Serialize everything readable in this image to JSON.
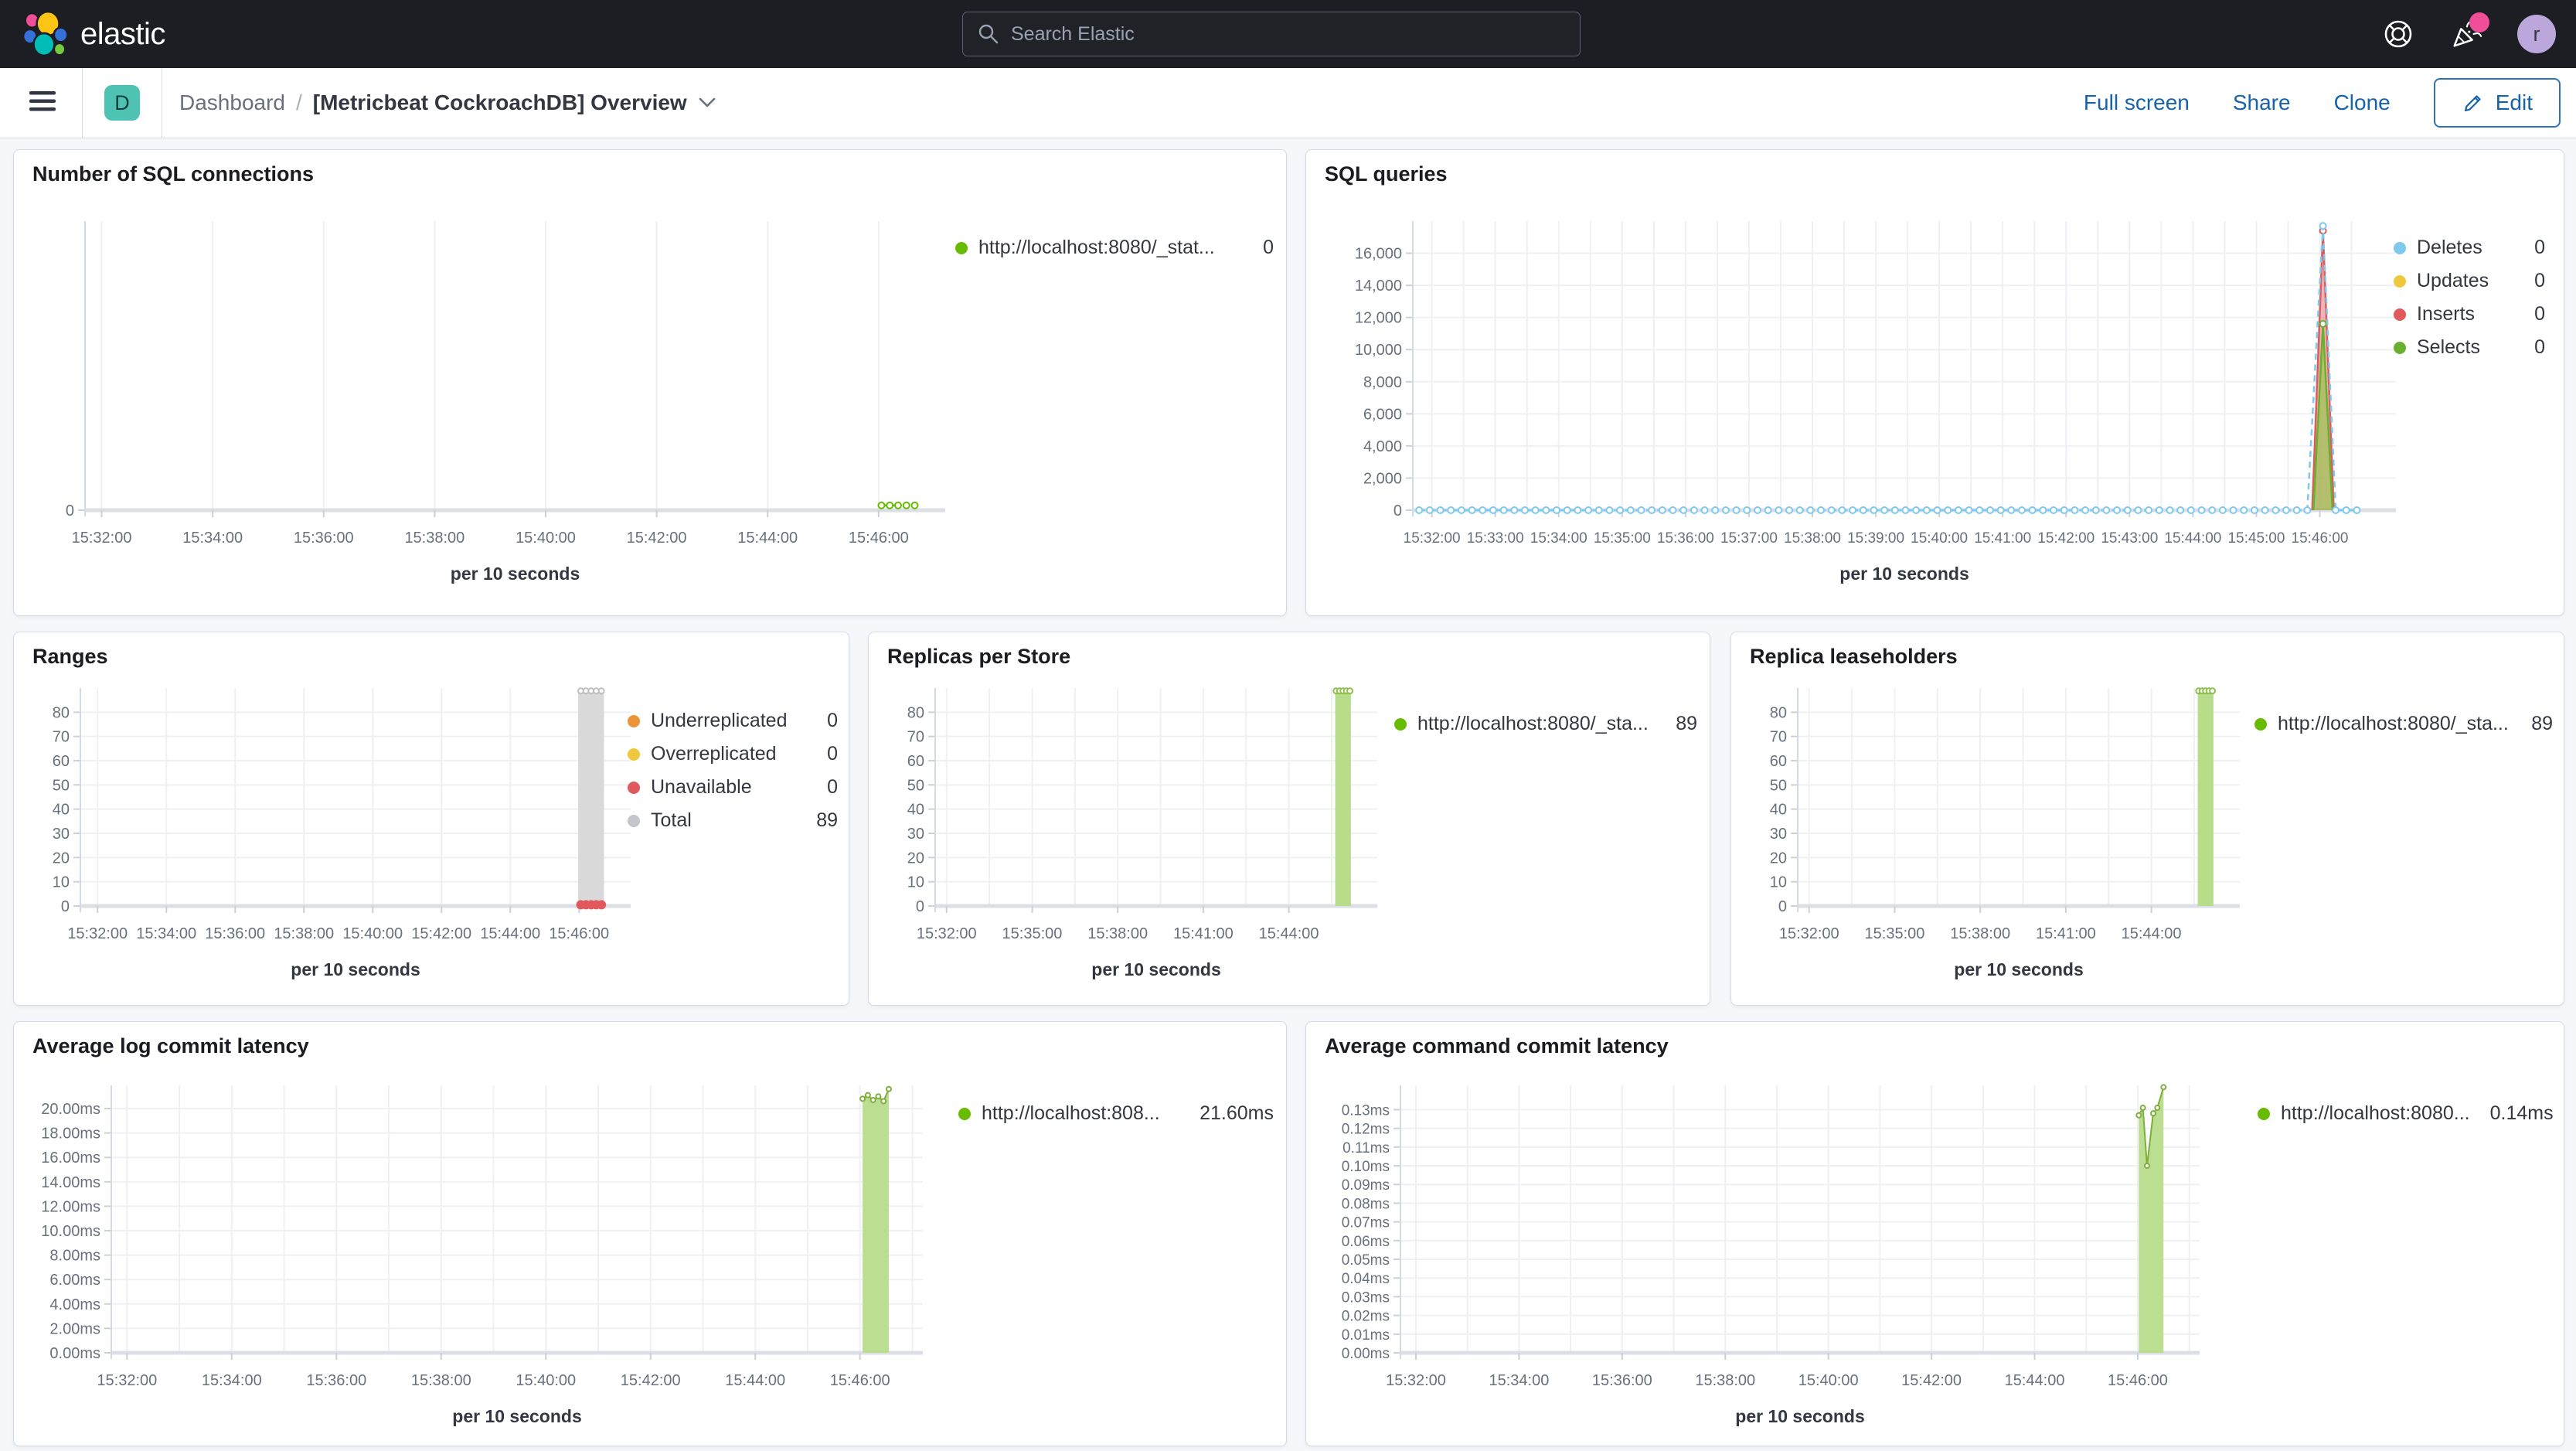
{
  "topbar": {
    "brand": "elastic",
    "search_placeholder": "Search Elastic",
    "avatar_initial": "r"
  },
  "navbar": {
    "badge": "D",
    "breadcrumb_root": "Dashboard",
    "breadcrumb_sep": "/",
    "title": "[Metricbeat CockroachDB] Overview",
    "action_fullscreen": "Full screen",
    "action_share": "Share",
    "action_clone": "Clone",
    "edit_label": "Edit"
  },
  "colors": {
    "accent_blue": "#1663ac",
    "badge_teal": "#4ec3b3",
    "notification_pink": "#f04e98",
    "avatar_purple": "#bca7dd",
    "green_series": "#68bc00",
    "bar_green": "#b7dc8a",
    "bar_gray": "#d9d9d9",
    "red_series": "#e0595c",
    "orange_series": "#eb9438",
    "yellow_series": "#f0c83d",
    "blue_series": "#7ec9ed"
  },
  "panels": [
    {
      "title": "Number of SQL connections",
      "legend": {
        "items": [
          {
            "label": "http://localhost:8080/_stat...",
            "value": "0",
            "color": "#68bc00"
          }
        ]
      }
    },
    {
      "title": "SQL queries",
      "legend": {
        "items": [
          {
            "label": "Deletes",
            "value": "0",
            "color": "#7ec9ed"
          },
          {
            "label": "Updates",
            "value": "0",
            "color": "#f0c83d"
          },
          {
            "label": "Inserts",
            "value": "0",
            "color": "#e0595c"
          },
          {
            "label": "Selects",
            "value": "0",
            "color": "#6ab02f"
          }
        ]
      }
    },
    {
      "title": "Ranges",
      "legend": {
        "items": [
          {
            "label": "Underreplicated",
            "value": "0",
            "color": "#eb9438"
          },
          {
            "label": "Overreplicated",
            "value": "0",
            "color": "#f0c83d"
          },
          {
            "label": "Unavailable",
            "value": "0",
            "color": "#e0595c"
          },
          {
            "label": "Total",
            "value": "89",
            "color": "#c4c6cc"
          }
        ]
      }
    },
    {
      "title": "Replicas per Store",
      "legend": {
        "items": [
          {
            "label": "http://localhost:8080/_sta...",
            "value": "89",
            "color": "#68bc00"
          }
        ]
      }
    },
    {
      "title": "Replica leaseholders",
      "legend": {
        "items": [
          {
            "label": "http://localhost:8080/_sta...",
            "value": "89",
            "color": "#68bc00"
          }
        ]
      }
    },
    {
      "title": "Average log commit latency",
      "legend": {
        "items": [
          {
            "label": "http://localhost:808...",
            "value": "21.60ms",
            "color": "#68bc00"
          }
        ]
      }
    },
    {
      "title": "Average command commit latency",
      "legend": {
        "items": [
          {
            "label": "http://localhost:8080...",
            "value": "0.14ms",
            "color": "#68bc00"
          }
        ]
      }
    }
  ],
  "chart_data": [
    {
      "type": "line",
      "title": "Number of SQL connections",
      "xlabel": "per 10 seconds",
      "x_unit": "minutes since 15:32:00",
      "x_range": [
        -0.3,
        15.2
      ],
      "x_ticks": [
        [
          0,
          "15:32:00"
        ],
        [
          2,
          "15:34:00"
        ],
        [
          4,
          "15:36:00"
        ],
        [
          6,
          "15:38:00"
        ],
        [
          8,
          "15:40:00"
        ],
        [
          10,
          "15:42:00"
        ],
        [
          12,
          "15:44:00"
        ],
        [
          14,
          "15:46:00"
        ]
      ],
      "x_minor_grid": false,
      "y_range": [
        0,
        9
      ],
      "y_ticks": [
        [
          0,
          "0"
        ]
      ],
      "series": [
        {
          "name": "connections",
          "color": "#68bc00",
          "type": "line",
          "dashed": true,
          "lw": 2.5,
          "marker": "all",
          "mr": 4,
          "points": [
            [
              14.05,
              0.15
            ],
            [
              14.2,
              0.15
            ],
            [
              14.35,
              0.15
            ],
            [
              14.5,
              0.15
            ],
            [
              14.65,
              0.15
            ]
          ]
        }
      ]
    },
    {
      "type": "line",
      "title": "SQL queries",
      "xlabel": "per 10 seconds",
      "x_unit": "minutes since 15:32:00",
      "x_range": [
        -0.3,
        15.2
      ],
      "x_ticks": [
        [
          0,
          "15:32:00"
        ],
        [
          1,
          "15:33:00"
        ],
        [
          2,
          "15:34:00"
        ],
        [
          3,
          "15:35:00"
        ],
        [
          4,
          "15:36:00"
        ],
        [
          5,
          "15:37:00"
        ],
        [
          6,
          "15:38:00"
        ],
        [
          7,
          "15:39:00"
        ],
        [
          8,
          "15:40:00"
        ],
        [
          9,
          "15:41:00"
        ],
        [
          10,
          "15:42:00"
        ],
        [
          11,
          "15:43:00"
        ],
        [
          12,
          "15:44:00"
        ],
        [
          13,
          "15:45:00"
        ],
        [
          14,
          "15:46:00"
        ]
      ],
      "x_minor_grid": true,
      "x_font": 19,
      "y_range": [
        0,
        18000
      ],
      "y_ticks": [
        [
          0,
          "0"
        ],
        [
          2000,
          "2,000"
        ],
        [
          4000,
          "4,000"
        ],
        [
          6000,
          "6,000"
        ],
        [
          8000,
          "8,000"
        ],
        [
          10000,
          "10,000"
        ],
        [
          12000,
          "12,000"
        ],
        [
          14000,
          "14,000"
        ],
        [
          16000,
          "16,000"
        ]
      ],
      "series": [
        {
          "name": "Inserts",
          "color": "#e0595c",
          "type": "area",
          "fill": "#e0595c",
          "fill_opacity": 0.45,
          "lw": 2.5,
          "points": [
            [
              13.88,
              0
            ],
            [
              14.05,
              17400
            ],
            [
              14.22,
              0
            ]
          ],
          "marker_points": [
            [
              14.05,
              17400
            ]
          ],
          "mr": 4
        },
        {
          "name": "Selects",
          "color": "#6ab02f",
          "type": "area",
          "fill": "#8cc63f",
          "fill_opacity": 0.6,
          "lw": 2.5,
          "points": [
            [
              13.9,
              0
            ],
            [
              14.05,
              11600
            ],
            [
              14.2,
              0
            ]
          ],
          "marker_points": [
            [
              14.05,
              11600
            ]
          ],
          "mr": 4
        },
        {
          "name": "Deletes",
          "color": "#7ec9ed",
          "type": "line",
          "dashed": true,
          "lw": 2.5,
          "marker": "all",
          "mr": 4,
          "points": [
            {
              "flat": [
                -0.2,
                13.85,
                0.1667,
                0
              ]
            },
            [
              14.05,
              17700
            ],
            {
              "flat": [
                14.25,
                14.7,
                0.1667,
                0
              ]
            }
          ]
        }
      ]
    },
    {
      "type": "bar",
      "title": "Ranges",
      "xlabel": "per 10 seconds",
      "x_unit": "minutes since 15:32:00",
      "x_range": [
        -0.5,
        15.5
      ],
      "x_ticks": [
        [
          0,
          "15:32:00"
        ],
        [
          2,
          "15:34:00"
        ],
        [
          4,
          "15:36:00"
        ],
        [
          6,
          "15:38:00"
        ],
        [
          8,
          "15:40:00"
        ],
        [
          10,
          "15:42:00"
        ],
        [
          12,
          "15:44:00"
        ],
        [
          14,
          "15:46:00"
        ]
      ],
      "x_minor_grid": false,
      "y_range": [
        0,
        90
      ],
      "y_ticks": [
        [
          0,
          "0"
        ],
        [
          10,
          "10"
        ],
        [
          20,
          "20"
        ],
        [
          30,
          "30"
        ],
        [
          40,
          "40"
        ],
        [
          50,
          "50"
        ],
        [
          60,
          "60"
        ],
        [
          70,
          "70"
        ],
        [
          80,
          "80"
        ]
      ],
      "series": [
        {
          "name": "Total",
          "type": "bar",
          "color": "#d9d9d9",
          "bar_x": 14.35,
          "bar_w": 0.75,
          "bar_y": 88
        },
        {
          "name": "Total-markers",
          "type": "line",
          "color": "#bfbfbf",
          "no_line": true,
          "marker": "all",
          "mr": 3.5,
          "points": [
            [
              14.05,
              88.8
            ],
            [
              14.2,
              88.8
            ],
            [
              14.35,
              88.8
            ],
            [
              14.5,
              88.8
            ],
            [
              14.65,
              88.8
            ]
          ]
        },
        {
          "name": "Unavailable",
          "type": "line",
          "color": "#e0595c",
          "no_line": true,
          "marker": "all",
          "marker_solid": true,
          "mr": 5,
          "points": [
            [
              14.05,
              0.5
            ],
            [
              14.2,
              0.5
            ],
            [
              14.35,
              0.5
            ],
            [
              14.5,
              0.5
            ],
            [
              14.65,
              0.5
            ]
          ]
        }
      ]
    },
    {
      "type": "bar",
      "title": "Replicas per Store",
      "xlabel": "per 10 seconds",
      "x_unit": "minutes since 15:32:00",
      "x_range": [
        -0.4,
        15.1
      ],
      "x_ticks": [
        [
          0,
          "15:32:00"
        ],
        [
          3,
          "15:35:00"
        ],
        [
          6,
          "15:38:00"
        ],
        [
          9,
          "15:41:00"
        ],
        [
          12,
          "15:44:00"
        ]
      ],
      "x_minor_grid": true,
      "y_range": [
        0,
        90
      ],
      "y_ticks": [
        [
          0,
          "0"
        ],
        [
          10,
          "10"
        ],
        [
          20,
          "20"
        ],
        [
          30,
          "30"
        ],
        [
          40,
          "40"
        ],
        [
          50,
          "50"
        ],
        [
          60,
          "60"
        ],
        [
          70,
          "70"
        ],
        [
          80,
          "80"
        ]
      ],
      "series": [
        {
          "name": "replicas",
          "type": "bar",
          "color": "#b7dc8a",
          "bar_x": 13.9,
          "bar_w": 0.55,
          "bar_y": 88
        },
        {
          "name": "replicas-markers",
          "type": "line",
          "color": "#8fbf4d",
          "no_line": true,
          "marker": "all",
          "mr": 3.5,
          "points": [
            [
              13.66,
              88.8
            ],
            [
              13.78,
              88.8
            ],
            [
              13.9,
              88.8
            ],
            [
              14.02,
              88.8
            ],
            [
              14.14,
              88.8
            ]
          ]
        }
      ]
    },
    {
      "type": "bar",
      "title": "Replica leaseholders",
      "xlabel": "per 10 seconds",
      "x_unit": "minutes since 15:32:00",
      "x_range": [
        -0.4,
        15.1
      ],
      "x_ticks": [
        [
          0,
          "15:32:00"
        ],
        [
          3,
          "15:35:00"
        ],
        [
          6,
          "15:38:00"
        ],
        [
          9,
          "15:41:00"
        ],
        [
          12,
          "15:44:00"
        ]
      ],
      "x_minor_grid": true,
      "y_range": [
        0,
        90
      ],
      "y_ticks": [
        [
          0,
          "0"
        ],
        [
          10,
          "10"
        ],
        [
          20,
          "20"
        ],
        [
          30,
          "30"
        ],
        [
          40,
          "40"
        ],
        [
          50,
          "50"
        ],
        [
          60,
          "60"
        ],
        [
          70,
          "70"
        ],
        [
          80,
          "80"
        ]
      ],
      "series": [
        {
          "name": "leaseholders",
          "type": "bar",
          "color": "#b7dc8a",
          "bar_x": 13.9,
          "bar_w": 0.55,
          "bar_y": 88
        },
        {
          "name": "leaseholders-markers",
          "type": "line",
          "color": "#8fbf4d",
          "no_line": true,
          "marker": "all",
          "mr": 3.5,
          "points": [
            [
              13.66,
              88.8
            ],
            [
              13.78,
              88.8
            ],
            [
              13.9,
              88.8
            ],
            [
              14.02,
              88.8
            ],
            [
              14.14,
              88.8
            ]
          ]
        }
      ]
    },
    {
      "type": "area",
      "title": "Average log commit latency",
      "xlabel": "per 10 seconds",
      "x_unit": "minutes since 15:32:00",
      "x_range": [
        -0.3,
        15.2
      ],
      "x_ticks": [
        [
          0,
          "15:32:00"
        ],
        [
          2,
          "15:34:00"
        ],
        [
          4,
          "15:36:00"
        ],
        [
          6,
          "15:38:00"
        ],
        [
          8,
          "15:40:00"
        ],
        [
          10,
          "15:42:00"
        ],
        [
          12,
          "15:44:00"
        ],
        [
          14,
          "15:46:00"
        ]
      ],
      "x_minor_grid": true,
      "y_range": [
        0,
        21.9
      ],
      "y_ticks": [
        [
          0,
          "0.00ms"
        ],
        [
          2,
          "2.00ms"
        ],
        [
          4,
          "4.00ms"
        ],
        [
          6,
          "6.00ms"
        ],
        [
          8,
          "8.00ms"
        ],
        [
          10,
          "10.00ms"
        ],
        [
          12,
          "12.00ms"
        ],
        [
          14,
          "14.00ms"
        ],
        [
          16,
          "16.00ms"
        ],
        [
          18,
          "18.00ms"
        ],
        [
          20,
          "20.00ms"
        ]
      ],
      "series": [
        {
          "name": "log-commit-latency",
          "type": "area",
          "color": "#7fae3e",
          "fill": "#b7dc8a",
          "fill_opacity": 0.95,
          "lw": 2,
          "marker": "all",
          "mr": 3,
          "points": [
            [
              14.05,
              20.8
            ],
            [
              14.15,
              21.1
            ],
            [
              14.25,
              20.7
            ],
            [
              14.35,
              21.0
            ],
            [
              14.45,
              20.6
            ],
            [
              14.55,
              21.6
            ]
          ]
        }
      ]
    },
    {
      "type": "area",
      "title": "Average command commit latency",
      "xlabel": "per 10 seconds",
      "x_unit": "minutes since 15:32:00",
      "x_range": [
        -0.3,
        15.2
      ],
      "x_ticks": [
        [
          0,
          "15:32:00"
        ],
        [
          2,
          "15:34:00"
        ],
        [
          4,
          "15:36:00"
        ],
        [
          6,
          "15:38:00"
        ],
        [
          8,
          "15:40:00"
        ],
        [
          10,
          "15:42:00"
        ],
        [
          12,
          "15:44:00"
        ],
        [
          14,
          "15:46:00"
        ]
      ],
      "x_minor_grid": true,
      "y_range": [
        0,
        0.143
      ],
      "y_font": 19,
      "y_ticks": [
        [
          0,
          "0.00ms"
        ],
        [
          0.01,
          "0.01ms"
        ],
        [
          0.02,
          "0.02ms"
        ],
        [
          0.03,
          "0.03ms"
        ],
        [
          0.04,
          "0.04ms"
        ],
        [
          0.05,
          "0.05ms"
        ],
        [
          0.06,
          "0.06ms"
        ],
        [
          0.07,
          "0.07ms"
        ],
        [
          0.08,
          "0.08ms"
        ],
        [
          0.09,
          "0.09ms"
        ],
        [
          0.1,
          "0.10ms"
        ],
        [
          0.11,
          "0.11ms"
        ],
        [
          0.12,
          "0.12ms"
        ],
        [
          0.13,
          "0.13ms"
        ]
      ],
      "series": [
        {
          "name": "command-commit-latency",
          "type": "area",
          "color": "#7fae3e",
          "fill": "#b7dc8a",
          "fill_opacity": 0.95,
          "lw": 2,
          "marker": "all",
          "mr": 3,
          "points": [
            [
              14.02,
              0.127
            ],
            [
              14.1,
              0.131
            ],
            [
              14.18,
              0.1
            ],
            [
              14.3,
              0.128
            ],
            [
              14.38,
              0.131
            ],
            [
              14.5,
              0.142
            ]
          ]
        }
      ]
    }
  ]
}
